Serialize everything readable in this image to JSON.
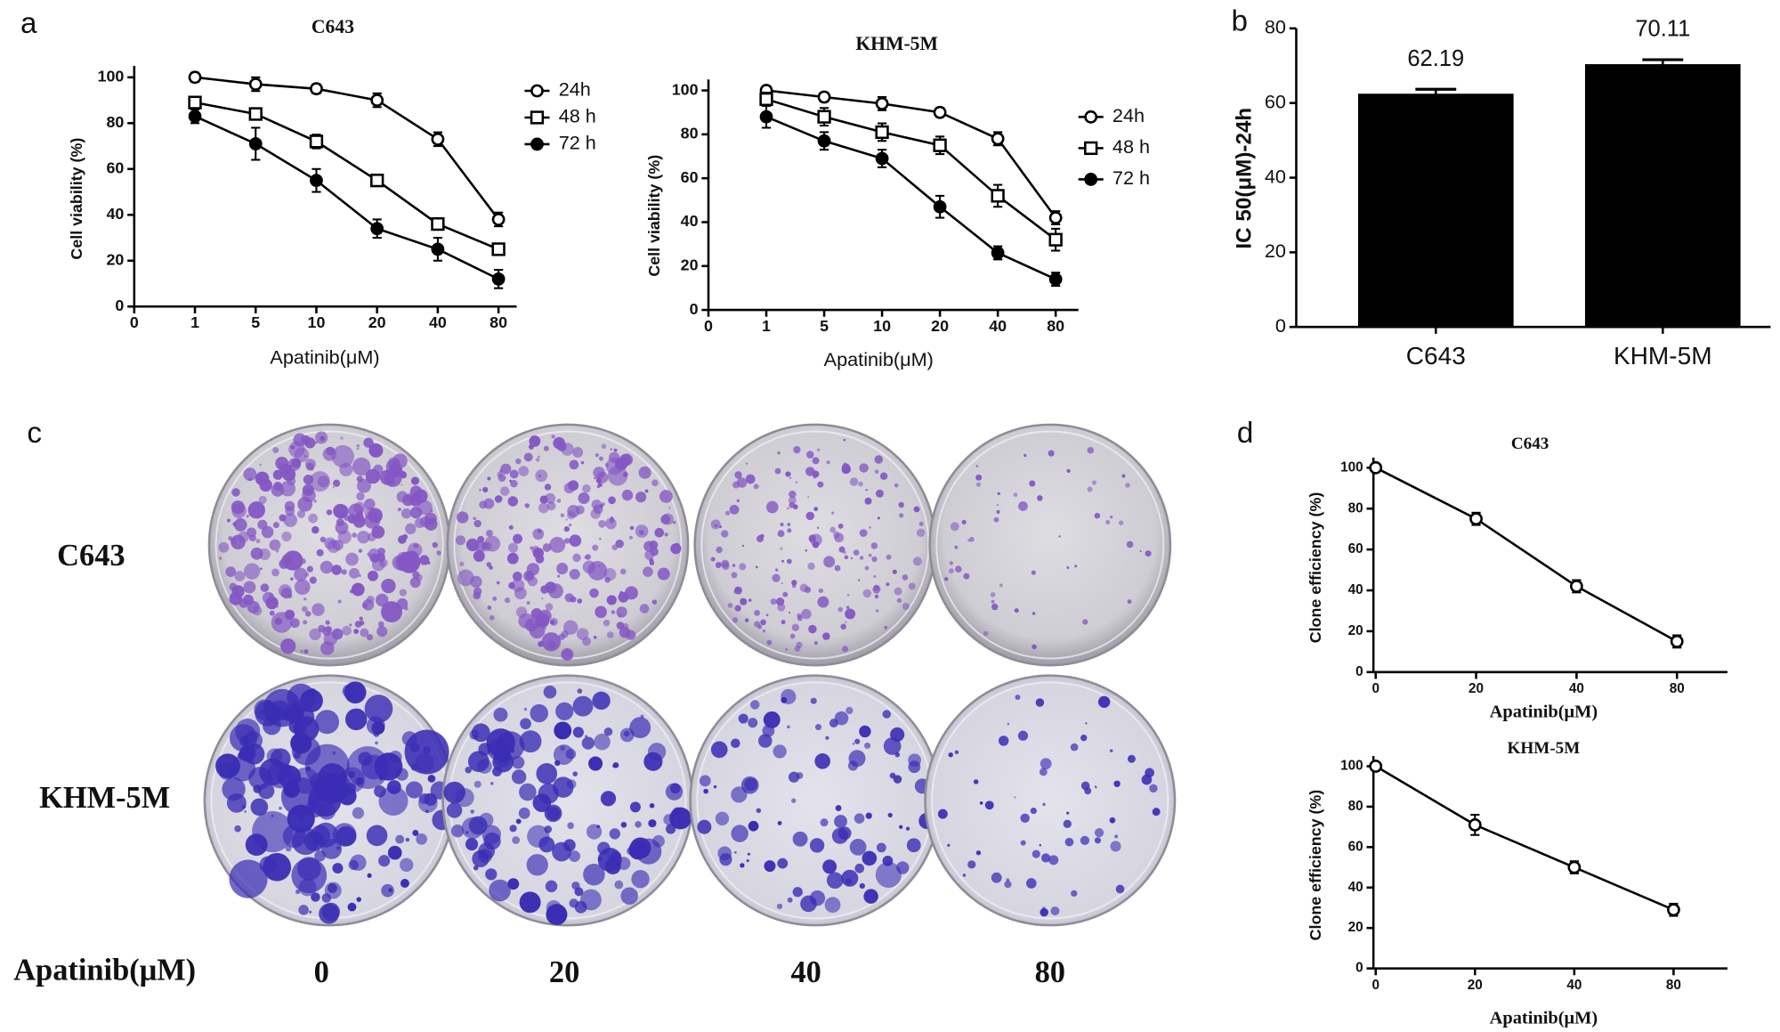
{
  "panel_labels": [
    "a",
    "b",
    "c",
    "d"
  ],
  "panel_c": {
    "row_labels": [
      "C643",
      "KHM-5M"
    ],
    "axis_label": "Apatinib(μM)",
    "doses": [
      "0",
      "20",
      "40",
      "80"
    ]
  },
  "chart_data": [
    {
      "type": "line",
      "title": "C643",
      "xlabel": "Apatinib(μM)",
      "ylabel": "Cell viability (%)",
      "categories": [
        "0",
        "1",
        "5",
        "10",
        "20",
        "40",
        "80"
      ],
      "ylim": [
        0,
        105
      ],
      "yticks": [
        0,
        20,
        40,
        60,
        80,
        100
      ],
      "series": [
        {
          "name": "24h",
          "color": "#000000",
          "marker": "circle-open",
          "values": [
            null,
            100,
            97,
            95,
            90,
            73,
            38
          ],
          "errors": [
            null,
            2,
            3,
            2,
            3,
            3,
            3
          ]
        },
        {
          "name": "48 h",
          "color": "#000000",
          "marker": "square-open",
          "values": [
            null,
            89,
            84,
            72,
            55,
            36,
            25
          ],
          "errors": [
            null,
            2,
            2,
            3,
            2,
            2,
            2
          ]
        },
        {
          "name": "72 h",
          "color": "#000000",
          "marker": "circle-filled",
          "values": [
            null,
            83,
            71,
            55,
            34,
            25,
            12
          ],
          "errors": [
            null,
            3,
            7,
            5,
            4,
            5,
            4
          ]
        }
      ]
    },
    {
      "type": "line",
      "title": "KHM-5M",
      "xlabel": "Apatinib(μM)",
      "ylabel": "Cell viability (%)",
      "categories": [
        "0",
        "1",
        "5",
        "10",
        "20",
        "40",
        "80"
      ],
      "ylim": [
        0,
        105
      ],
      "yticks": [
        0,
        20,
        40,
        60,
        80,
        100
      ],
      "series": [
        {
          "name": "24h",
          "color": "#000000",
          "marker": "circle-open",
          "values": [
            null,
            100,
            97,
            94,
            90,
            78,
            42
          ],
          "errors": [
            null,
            2,
            2,
            3,
            2,
            3,
            3
          ]
        },
        {
          "name": "48 h",
          "color": "#000000",
          "marker": "square-open",
          "values": [
            null,
            96,
            88,
            81,
            75,
            52,
            32
          ],
          "errors": [
            null,
            3,
            4,
            4,
            4,
            5,
            5
          ]
        },
        {
          "name": "72 h",
          "color": "#000000",
          "marker": "circle-filled",
          "values": [
            null,
            88,
            77,
            69,
            47,
            26,
            14
          ],
          "errors": [
            null,
            5,
            4,
            4,
            5,
            3,
            3
          ]
        }
      ]
    },
    {
      "type": "bar",
      "ylabel": "IC 50(μM)-24h",
      "categories": [
        "C643",
        "KHM-5M"
      ],
      "values": [
        62.19,
        70.11
      ],
      "errors": [
        1.5,
        1.5
      ],
      "color": "#000000",
      "ylim": [
        0,
        80
      ],
      "yticks": [
        0,
        20,
        40,
        60,
        80
      ]
    },
    {
      "type": "line",
      "title": "C643",
      "xlabel": "Apatinib(μM)",
      "ylabel": "Clone efficiency (%)",
      "categories": [
        "0",
        "20",
        "40",
        "80"
      ],
      "ylim": [
        0,
        105
      ],
      "yticks": [
        0,
        20,
        40,
        60,
        80,
        100
      ],
      "series": [
        {
          "color": "#000000",
          "marker": "circle-open",
          "values": [
            100,
            75,
            42,
            15
          ],
          "errors": [
            0,
            3,
            3,
            3
          ]
        }
      ]
    },
    {
      "type": "line",
      "title": "KHM-5M",
      "xlabel": "Apatinib(μM)",
      "ylabel": "Clone efficiency (%)",
      "categories": [
        "0",
        "20",
        "40",
        "80"
      ],
      "ylim": [
        0,
        105
      ],
      "yticks": [
        0,
        20,
        40,
        60,
        80,
        100
      ],
      "series": [
        {
          "color": "#000000",
          "marker": "circle-open",
          "values": [
            100,
            71,
            50,
            29
          ],
          "errors": [
            0,
            5,
            3,
            3
          ]
        }
      ]
    }
  ]
}
